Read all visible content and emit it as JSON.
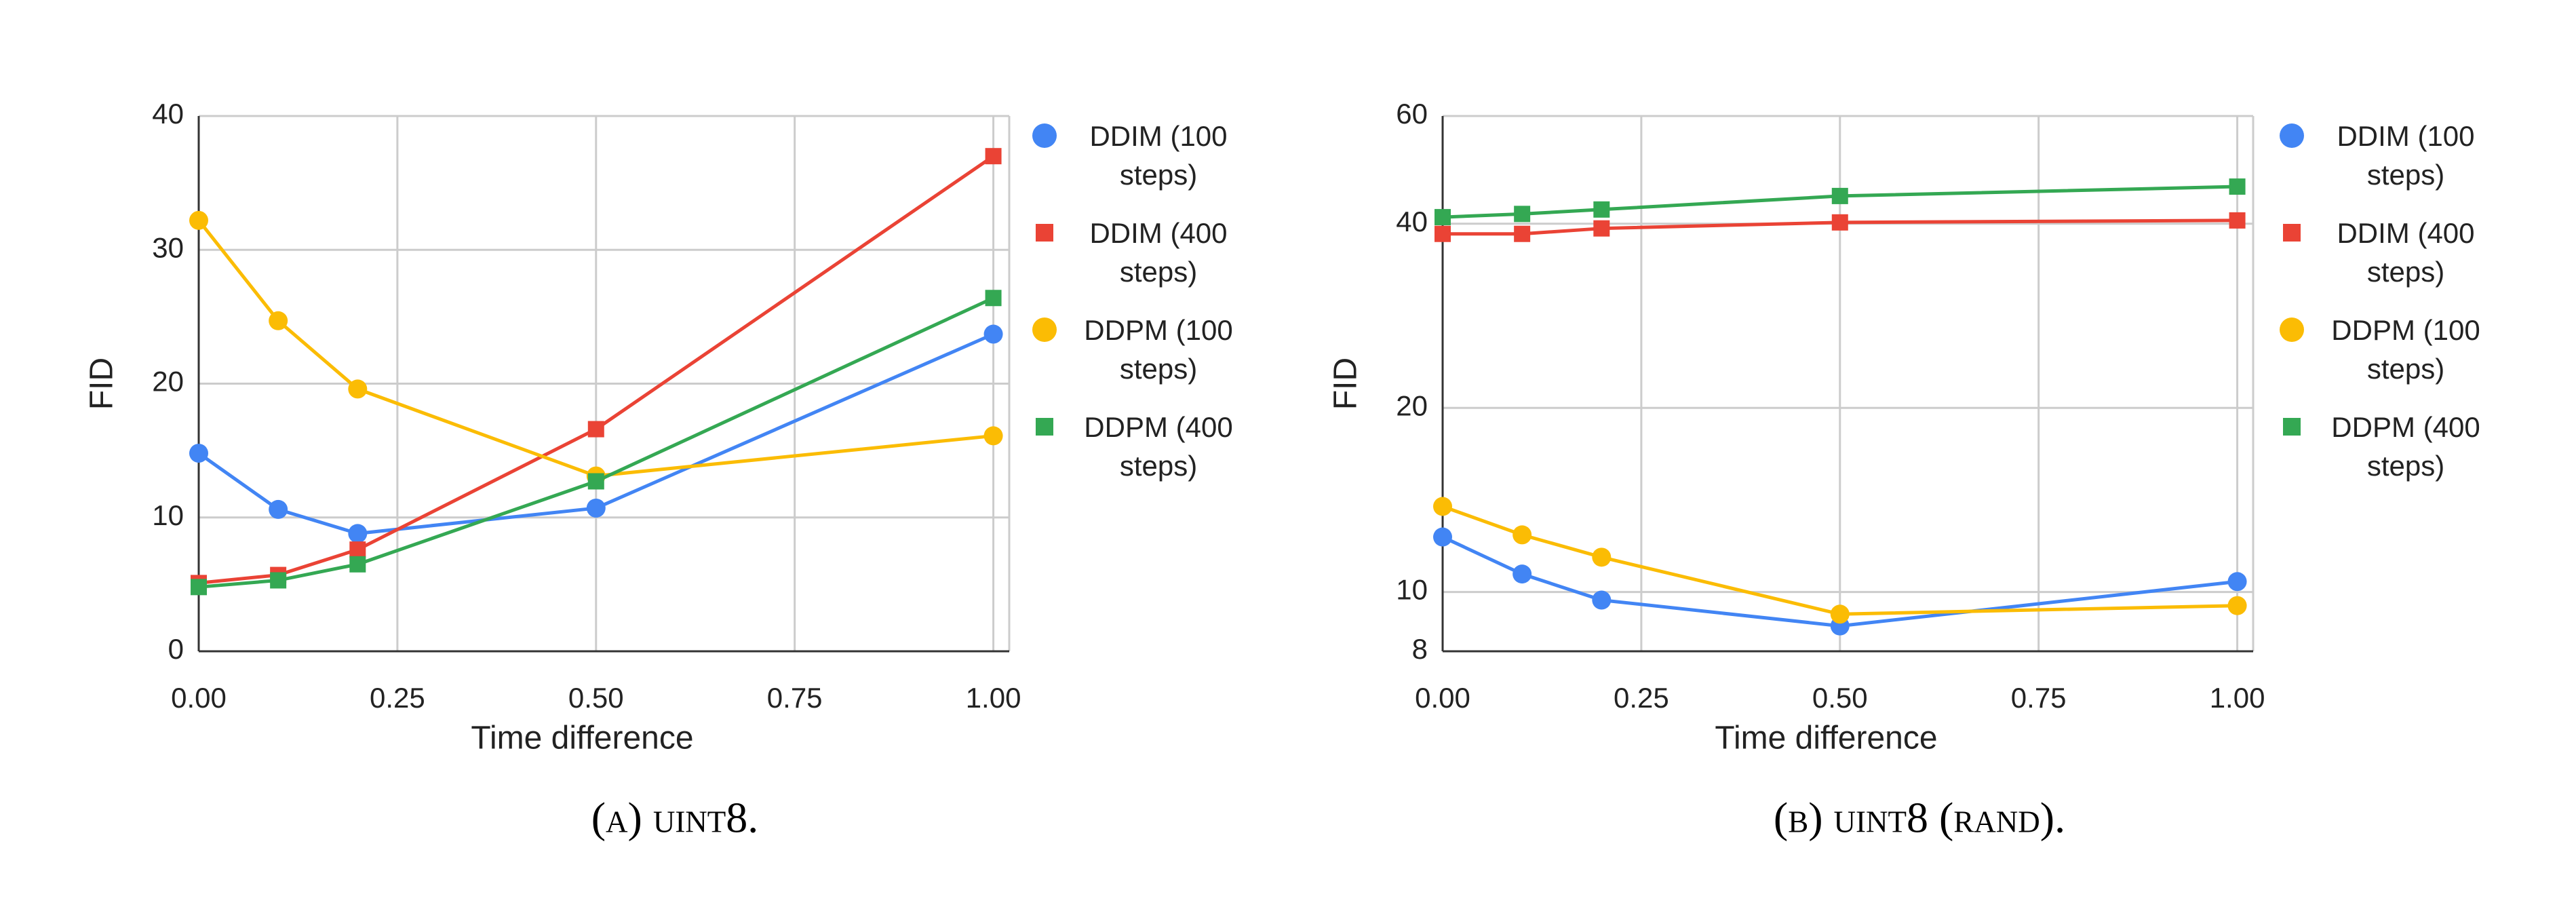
{
  "chart_data": [
    {
      "type": "line",
      "caption": "(a) uint8.",
      "x_label": "Time difference",
      "y_label": "FID",
      "x": [
        0,
        0.1,
        0.2,
        0.5,
        1.0
      ],
      "xlim": [
        0,
        1.02
      ],
      "xticks": [
        {
          "value": 0,
          "label": "0.00"
        },
        {
          "value": 0.25,
          "label": "0.25"
        },
        {
          "value": 0.5,
          "label": "0.50"
        },
        {
          "value": 0.75,
          "label": "0.75"
        },
        {
          "value": 1,
          "label": "1.00"
        }
      ],
      "ylim": [
        0,
        40
      ],
      "yticks": [
        0,
        10,
        20,
        30,
        40
      ],
      "log_scale": false,
      "grid": true,
      "series": [
        {
          "name": "DDIM (100 steps)",
          "color": "#4285f4",
          "marker": "circle",
          "values": [
            14.8,
            10.6,
            8.8,
            10.7,
            23.7
          ]
        },
        {
          "name": "DDIM (400 steps)",
          "color": "#ea4335",
          "marker": "square",
          "values": [
            5.1,
            5.7,
            7.6,
            16.6,
            37.0
          ]
        },
        {
          "name": "DDPM (100 steps)",
          "color": "#fbbc04",
          "marker": "circle",
          "values": [
            32.2,
            24.7,
            19.6,
            13.1,
            16.1
          ]
        },
        {
          "name": "DDPM (400 steps)",
          "color": "#34a853",
          "marker": "square",
          "values": [
            4.8,
            5.3,
            6.5,
            12.7,
            26.4
          ]
        }
      ]
    },
    {
      "type": "line",
      "caption": "(b) uint8 (rand).",
      "x_label": "Time difference",
      "y_label": "FID",
      "x": [
        0,
        0.1,
        0.2,
        0.5,
        1.0
      ],
      "xlim": [
        0,
        1.02
      ],
      "xticks": [
        {
          "value": 0,
          "label": "0.00"
        },
        {
          "value": 0.25,
          "label": "0.25"
        },
        {
          "value": 0.5,
          "label": "0.50"
        },
        {
          "value": 0.75,
          "label": "0.75"
        },
        {
          "value": 1,
          "label": "1.00"
        }
      ],
      "ylim": [
        8,
        60
      ],
      "yticks": [
        8,
        10,
        20,
        40,
        60
      ],
      "log_scale": true,
      "grid": true,
      "series": [
        {
          "name": "DDIM (100 steps)",
          "color": "#4285f4",
          "marker": "circle",
          "values": [
            12.3,
            10.7,
            9.7,
            8.8,
            10.4
          ]
        },
        {
          "name": "DDIM (400 steps)",
          "color": "#ea4335",
          "marker": "square",
          "values": [
            38.5,
            38.5,
            39.3,
            40.2,
            40.5
          ]
        },
        {
          "name": "DDPM (100 steps)",
          "color": "#fbbc04",
          "marker": "circle",
          "values": [
            13.8,
            12.4,
            11.4,
            9.2,
            9.5
          ]
        },
        {
          "name": "DDPM (400 steps)",
          "color": "#34a853",
          "marker": "square",
          "values": [
            41.0,
            41.5,
            42.2,
            44.4,
            46.0
          ]
        }
      ]
    }
  ]
}
